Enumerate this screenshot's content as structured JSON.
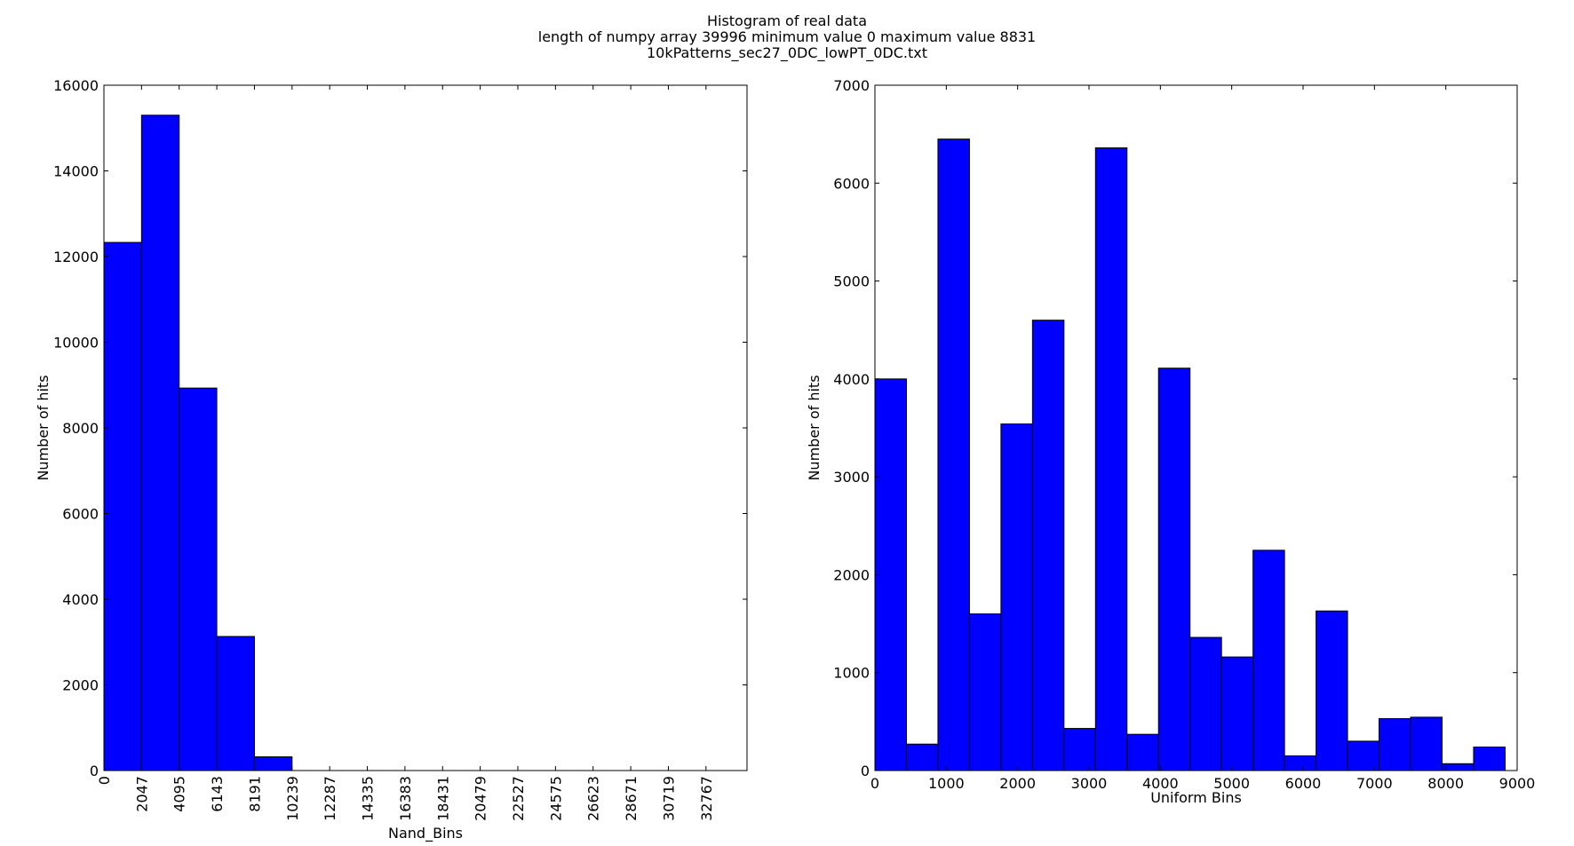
{
  "figure": {
    "title_lines": [
      "Histogram of real data",
      "length of numpy array 39996 minimum value 0 maximum value 8831",
      "10kPatterns_sec27_0DC_lowPT_0DC.txt"
    ]
  },
  "chart_data": [
    {
      "type": "bar",
      "title": "",
      "xlabel": "Nand_Bins",
      "ylabel": "Number of hits",
      "xlim": [
        0,
        35000
      ],
      "ylim": [
        0,
        16000
      ],
      "yticks": [
        0,
        2000,
        4000,
        6000,
        8000,
        10000,
        12000,
        14000,
        16000
      ],
      "xticks": [
        0,
        2047,
        4095,
        6143,
        8191,
        10239,
        12287,
        14335,
        16383,
        18431,
        20479,
        22527,
        24575,
        26623,
        28671,
        30719,
        32767
      ],
      "xtick_rotation": "vertical",
      "bin_edges": [
        0,
        2047,
        4095,
        6143,
        8191,
        10239,
        12287,
        14335,
        16383,
        18431,
        20479,
        22527,
        24575,
        26623,
        28671,
        30719,
        32767
      ],
      "values": [
        12330,
        15300,
        8930,
        3130,
        320,
        0,
        0,
        0,
        0,
        0,
        0,
        0,
        0,
        0,
        0,
        0
      ],
      "bar_color": "#0000ff",
      "grid": false
    },
    {
      "type": "bar",
      "title": "",
      "xlabel": "Uniform Bins",
      "ylabel": "Number of hits",
      "xlim": [
        0,
        9000
      ],
      "ylim": [
        0,
        7000
      ],
      "yticks": [
        0,
        1000,
        2000,
        3000,
        4000,
        5000,
        6000,
        7000
      ],
      "xticks": [
        0,
        1000,
        2000,
        3000,
        4000,
        5000,
        6000,
        7000,
        8000,
        9000
      ],
      "bin_edges": [
        0,
        441.55,
        883.1,
        1324.65,
        1766.2,
        2207.75,
        2649.3,
        3090.85,
        3532.4,
        3973.95,
        4415.5,
        4857.05,
        5298.6,
        5740.15,
        6181.7,
        6623.25,
        7064.8,
        7506.35,
        7947.9,
        8389.45,
        8831
      ],
      "values": [
        4000,
        270,
        6450,
        1600,
        3540,
        4600,
        430,
        6360,
        370,
        4110,
        1360,
        1160,
        2250,
        150,
        1630,
        300,
        530,
        545,
        70,
        240
      ],
      "bar_color": "#0000ff",
      "grid": false
    }
  ]
}
